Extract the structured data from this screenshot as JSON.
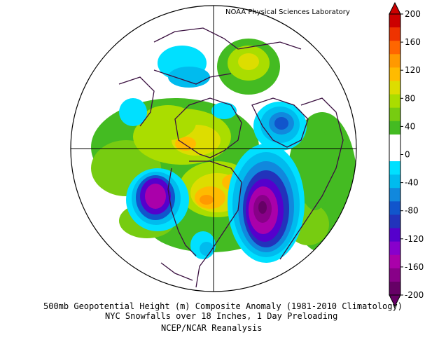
{
  "credit": "NOAA Physical Sciences Laboratory",
  "caption": {
    "line1": "500mb Geopotential Height (m) Composite Anomaly (1981-2010 Climatology)",
    "line2": "NYC Snowfalls over 18 Inches, 1 Day Preloading",
    "line3": "NCEP/NCAR Reanalysis"
  },
  "colorbar": {
    "tick_labels": [
      "200",
      "160",
      "120",
      "80",
      "40",
      "0",
      "-40",
      "-80",
      "-120",
      "-160",
      "-200"
    ],
    "bands": [
      "#cc0000",
      "#ee3300",
      "#ff6600",
      "#ff9900",
      "#ffbb00",
      "#dddd00",
      "#aadd00",
      "#77cc11",
      "#44bb22",
      "#ffffff",
      "#ffffff",
      "#00e0ff",
      "#00bbee",
      "#1188dd",
      "#1155cc",
      "#2233bb",
      "#5500cc",
      "#8800cc",
      "#aa00aa",
      "#880088",
      "#660066"
    ]
  },
  "map": {
    "projection": "north-polar-stereographic",
    "anomalies": [
      {
        "region": "western Canada",
        "sign": "positive",
        "peak": 120
      },
      {
        "region": "Hudson Bay",
        "sign": "positive",
        "peak": 80
      },
      {
        "region": "Great Lakes",
        "sign": "positive",
        "peak": 120
      },
      {
        "region": "North Pacific",
        "sign": "negative",
        "peak": -160
      },
      {
        "region": "western North Atlantic",
        "sign": "negative",
        "peak": -180
      },
      {
        "region": "Scandinavia",
        "sign": "negative",
        "peak": -80
      },
      {
        "region": "northern Siberia",
        "sign": "positive",
        "peak": 80
      }
    ]
  }
}
